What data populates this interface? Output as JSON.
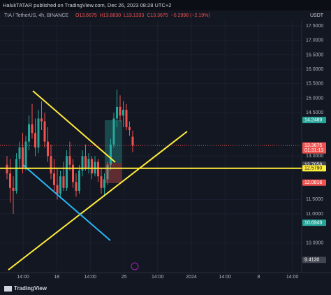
{
  "chart_data": {
    "type": "candlestick",
    "title": "HalukTATAR published on TradingView.com, Dec 26, 2023 08:28 UTC+2",
    "symbol": "TIA / TetherUS, 4h, BINANCE",
    "legend_values": [
      "O13.6675",
      "H13.8830",
      "L13.1333",
      "C13.3675",
      "−0.2998 (−2.19%)"
    ],
    "currency": "USDT",
    "brand": "TradingView",
    "up_color": "#26a69a",
    "down_color": "#ef5350",
    "ylim": [
      9.02,
      17.67
    ],
    "yticks": [
      {
        "value": 17.5,
        "label": "17.5000"
      },
      {
        "value": 17,
        "label": "17.0000"
      },
      {
        "value": 16.5,
        "label": "16.5000"
      },
      {
        "value": 16,
        "label": "16.0000"
      },
      {
        "value": 15.5,
        "label": "15.5000"
      },
      {
        "value": 15,
        "label": "15.0000"
      },
      {
        "value": 14.5,
        "label": "14.5000"
      },
      {
        "value": 13,
        "label": "13.0000"
      },
      {
        "value": 11.5,
        "label": "11.5000"
      },
      {
        "value": 11,
        "label": "11.0000"
      },
      {
        "value": 10,
        "label": "10.0000"
      }
    ],
    "grid": true,
    "categories": [
      "14:00",
      "18",
      "14:00",
      "25",
      "14:00",
      "2024",
      "14:00",
      "8",
      "14:00"
    ],
    "candles": [
      [
        12.7,
        13.0,
        12.2,
        12.4
      ],
      [
        12.4,
        12.9,
        11.4,
        11.9
      ],
      [
        11.9,
        12.3,
        11.0,
        11.8
      ],
      [
        11.8,
        13.1,
        11.7,
        12.9
      ],
      [
        12.9,
        13.5,
        12.6,
        13.3
      ],
      [
        13.3,
        13.8,
        12.4,
        12.6
      ],
      [
        12.6,
        13.7,
        12.5,
        13.5
      ],
      [
        13.5,
        14.4,
        13.2,
        14.1
      ],
      [
        14.1,
        14.8,
        13.6,
        13.8
      ],
      [
        13.8,
        14.3,
        13.0,
        13.3
      ],
      [
        13.3,
        14.6,
        13.1,
        14.3
      ],
      [
        14.3,
        14.9,
        13.9,
        14.2
      ],
      [
        14.2,
        14.5,
        13.3,
        13.5
      ],
      [
        13.5,
        14.0,
        12.8,
        13.0
      ],
      [
        13.0,
        13.4,
        12.2,
        12.4
      ],
      [
        12.4,
        12.9,
        11.8,
        12.0
      ],
      [
        12.0,
        12.6,
        11.5,
        11.7
      ],
      [
        11.7,
        12.5,
        11.6,
        12.3
      ],
      [
        12.3,
        12.8,
        11.8,
        11.9
      ],
      [
        11.9,
        13.2,
        11.8,
        13.0
      ],
      [
        13.0,
        13.5,
        12.5,
        12.7
      ],
      [
        12.7,
        12.9,
        11.9,
        12.1
      ],
      [
        12.1,
        12.4,
        11.6,
        11.8
      ],
      [
        11.8,
        12.7,
        11.7,
        12.5
      ],
      [
        12.5,
        13.2,
        12.3,
        13.0
      ],
      [
        13.0,
        13.4,
        12.5,
        12.6
      ],
      [
        12.6,
        13.1,
        12.4,
        12.9
      ],
      [
        12.9,
        13.0,
        12.2,
        12.4
      ],
      [
        12.4,
        13.0,
        12.3,
        12.8
      ],
      [
        12.8,
        12.9,
        12.1,
        12.3
      ],
      [
        12.3,
        12.6,
        11.7,
        11.9
      ],
      [
        11.9,
        12.4,
        11.6,
        12.2
      ],
      [
        12.2,
        12.8,
        12.0,
        12.7
      ],
      [
        12.7,
        13.6,
        12.5,
        13.4
      ],
      [
        13.4,
        14.5,
        13.3,
        14.3
      ],
      [
        14.3,
        15.3,
        14.0,
        14.7
      ],
      [
        14.7,
        15.1,
        14.2,
        14.4
      ],
      [
        14.4,
        14.9,
        14.0,
        14.6
      ],
      [
        14.6,
        14.8,
        13.9,
        14.0
      ],
      [
        14.0,
        14.2,
        13.7,
        13.9
      ],
      [
        13.6675,
        13.883,
        13.1333,
        13.3675
      ]
    ],
    "horizontal_line": {
      "value": 12.579,
      "color": "#ffeb3b"
    },
    "price_labels": [
      {
        "value": 14.2489,
        "label": "14.2489",
        "color": "#26a69a"
      },
      {
        "value": 13.3675,
        "label": "13.3675",
        "color": "#ef5350"
      },
      {
        "value": 12.7058,
        "label": "12.7058",
        "color": "#434651"
      },
      {
        "value": 12.579,
        "label": "12.5790",
        "color": "#ffeb3b"
      },
      {
        "value": 12.0816,
        "label": "12.0816",
        "color": "#ef5350"
      },
      {
        "value": 10.6949,
        "label": "10.6949",
        "color": "#26a69a"
      },
      {
        "value": 9.413,
        "label": "9.4130",
        "color": "#434651"
      }
    ],
    "countdown": "01:31:13"
  }
}
